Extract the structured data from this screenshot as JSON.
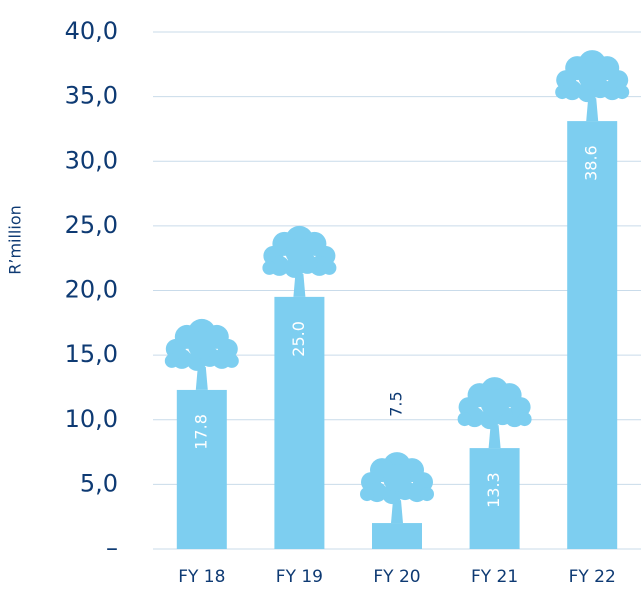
{
  "chart_data": {
    "type": "pictogram-bar",
    "y_label": "R’million",
    "categories": [
      "FY 18",
      "FY 19",
      "FY 20",
      "FY 21",
      "FY 22"
    ],
    "values": [
      17.8,
      25.0,
      7.5,
      13.3,
      38.6
    ],
    "value_labels": [
      "17.8",
      "25.0",
      "7.5",
      "13.3",
      "38.6"
    ],
    "color": "#7dcef0",
    "ylim": [
      0,
      40
    ],
    "yticks": [
      {
        "value": 0,
        "label": "–"
      },
      {
        "value": 5,
        "label": "5,0"
      },
      {
        "value": 10,
        "label": "10,0"
      },
      {
        "value": 15,
        "label": "15,0"
      },
      {
        "value": 20,
        "label": "20,0"
      },
      {
        "value": 25,
        "label": "25,0"
      },
      {
        "value": 30,
        "label": "30,0"
      },
      {
        "value": 35,
        "label": "35,0"
      },
      {
        "value": 40,
        "label": "40,0"
      }
    ],
    "grid": true
  }
}
